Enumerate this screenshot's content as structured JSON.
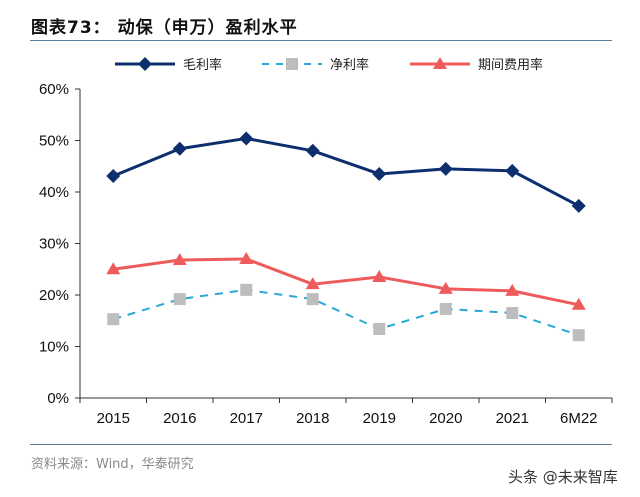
{
  "chart_data": {
    "type": "line",
    "title": "图表73： 动保（申万）盈利水平",
    "categories": [
      "2015",
      "2016",
      "2017",
      "2018",
      "2019",
      "2020",
      "2021",
      "6M22"
    ],
    "ylim": [
      0,
      60
    ],
    "yticks": [
      0,
      10,
      20,
      30,
      40,
      50,
      60
    ],
    "ytick_labels": [
      "0%",
      "10%",
      "20%",
      "30%",
      "40%",
      "50%",
      "60%"
    ],
    "xlabel": "",
    "ylabel": "",
    "grid": false,
    "legend_position": "top",
    "series": [
      {
        "name": "毛利率",
        "color": "#0d2f6e",
        "marker": "diamond",
        "style": "solid",
        "values": [
          43.1,
          48.4,
          50.4,
          48.0,
          43.5,
          44.5,
          44.1,
          37.3
        ]
      },
      {
        "name": "净利率",
        "color": "#2aa7d6",
        "marker_color": "#bdbdbd",
        "marker": "square",
        "style": "dashed",
        "values": [
          15.3,
          19.2,
          21.0,
          19.2,
          13.4,
          17.3,
          16.5,
          12.2
        ]
      },
      {
        "name": "期间费用率",
        "color": "#ef5b5b",
        "marker": "triangle",
        "style": "solid",
        "values": [
          25.0,
          26.8,
          27.0,
          22.1,
          23.5,
          21.2,
          20.8,
          18.1
        ]
      }
    ]
  },
  "footer": {
    "source": "资料来源：Wind，华泰研究",
    "watermark": "头条 @未来智库"
  }
}
